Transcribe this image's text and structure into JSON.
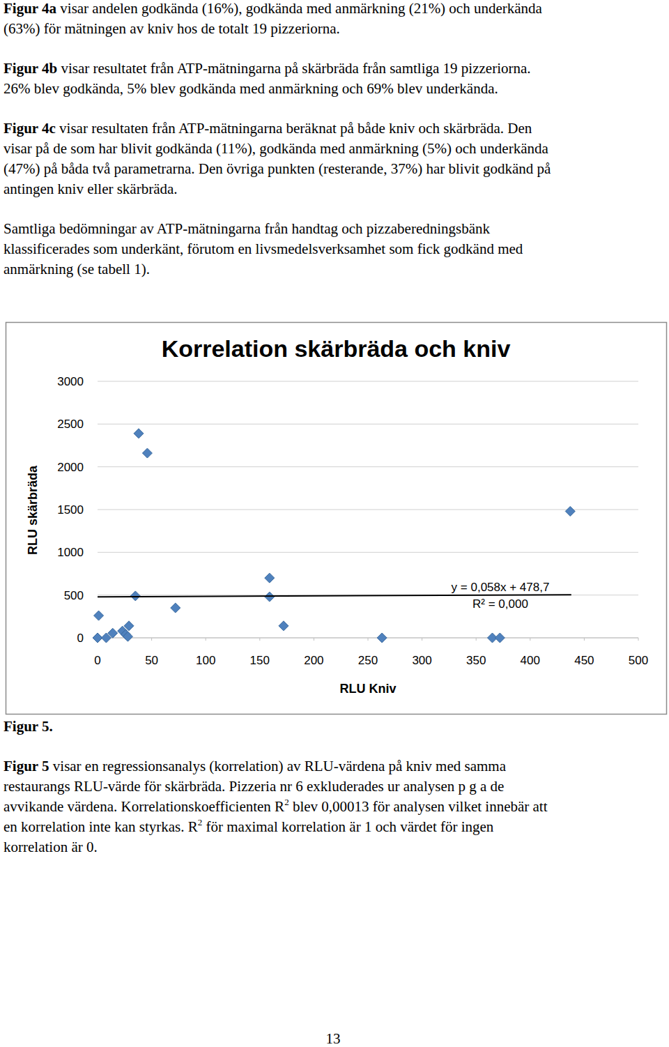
{
  "paragraphs": [
    [
      [
        {
          "text": "Figur 4a",
          "style": "bold"
        },
        {
          "text": " visar andelen godkända (16%), godkända med anmärkning (21%) och underkända"
        }
      ],
      [
        {
          "text": "(63%) för mätningen av kniv hos de totalt 19 pizzeriorna."
        }
      ]
    ],
    [
      [
        {
          "text": "Figur 4b",
          "style": "bold"
        },
        {
          "text": " visar resultatet från ATP-mätningarna på skärbräda från samtliga 19 pizzeriorna."
        }
      ],
      [
        {
          "text": "26% blev godkända, 5% blev godkända med anmärkning och 69% blev underkända."
        }
      ]
    ],
    [
      [
        {
          "text": "Figur 4c",
          "style": "bold"
        },
        {
          "text": " visar resultaten från ATP-mätningarna beräknat på både kniv och skärbräda. Den"
        }
      ],
      [
        {
          "text": "visar på de som har blivit godkända (11%), godkända med anmärkning (5%) och underkända"
        }
      ],
      [
        {
          "text": "(47%) på båda två parametrarna. Den övriga punkten (resterande, 37%) har blivit godkänd på"
        }
      ],
      [
        {
          "text": "antingen kniv eller skärbräda."
        }
      ]
    ],
    [
      [
        {
          "text": "Samtliga bedömningar av ATP-mätningarna från handtag och pizzaberedningsbänk"
        }
      ],
      [
        {
          "text": "klassificerades som underkänt, förutom en livsmedelsverksamhet som fick godkänd med"
        }
      ],
      [
        {
          "text": "anmärkning (se tabell 1)."
        }
      ]
    ],
    [
      [
        {
          "text": "Figur 5",
          "style": "bold"
        },
        {
          "text": " visar en regressionsanalys (korrelation) av RLU-värdena på kniv med samma"
        }
      ],
      [
        {
          "text": "restaurangs RLU-värde för skärbräda. Pizzeria nr 6 exkluderades ur analysen p g a de"
        }
      ],
      [
        {
          "text": "avvikande värdena. Korrelationskoefficienten R"
        },
        {
          "text": "2",
          "style": "sup"
        },
        {
          "text": " blev 0,00013 för analysen vilket innebär att"
        }
      ],
      [
        {
          "text": "en korrelation inte kan styrkas. R"
        },
        {
          "text": "2",
          "style": "sup"
        },
        {
          "text": " för maximal korrelation är 1 och värdet för ingen"
        }
      ],
      [
        {
          "text": "korrelation är 0."
        }
      ]
    ]
  ],
  "chart_data": {
    "type": "scatter",
    "title": "Korrelation skärbräda och kniv",
    "x_label": "RLU Kniv",
    "y_label": "RLU skärbräda",
    "series": [
      {
        "type": "scatter",
        "marker": "diamond",
        "color": "#4f81bd",
        "x": [
          38,
          46,
          437,
          159,
          35,
          159,
          72,
          172,
          1,
          0,
          8,
          14,
          23,
          26,
          29,
          28,
          263,
          365,
          372
        ],
        "values": [
          2390,
          2160,
          1480,
          700,
          490,
          480,
          350,
          140,
          260,
          0,
          0,
          55,
          80,
          40,
          140,
          15,
          0,
          0,
          0
        ]
      },
      {
        "type": "line",
        "line_style": "solid",
        "color": "#000000",
        "x": [
          0,
          438
        ],
        "values": [
          478.7,
          504.1
        ]
      }
    ],
    "annotations": [
      "y = 0,058x + 478,7",
      "R² = 0,000"
    ],
    "xlim": [
      0,
      500
    ],
    "xticks": [
      0,
      50,
      100,
      150,
      200,
      250,
      300,
      350,
      400,
      450,
      500
    ],
    "ylim": [
      0,
      3000
    ],
    "yticks": [
      0,
      500,
      1000,
      1500,
      2000,
      2500,
      3000
    ],
    "grid": true
  },
  "caption": "Figur 5.",
  "page_number": "13"
}
